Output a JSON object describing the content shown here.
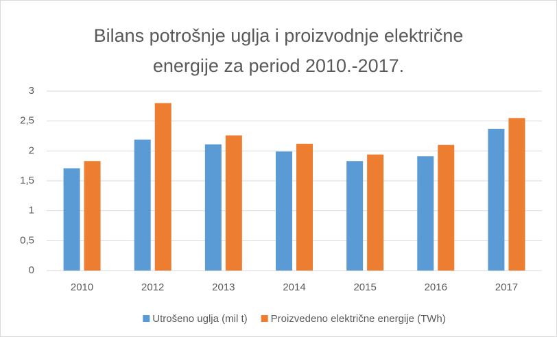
{
  "chart_data": {
    "type": "bar",
    "title": "Bilans potrošnje uglja i proizvodnje električne energije za period 2010.-2017.",
    "categories": [
      "2010",
      "2012",
      "2013",
      "2014",
      "2015",
      "2016",
      "2017"
    ],
    "series": [
      {
        "name": "Utrošeno uglja (mil t)",
        "color": "#5b9bd5",
        "values": [
          1.71,
          2.19,
          2.11,
          1.99,
          1.83,
          1.91,
          2.37
        ]
      },
      {
        "name": "Proizvedeno električne energije (TWh)",
        "color": "#ed7d31",
        "values": [
          1.83,
          2.8,
          2.26,
          2.12,
          1.94,
          2.1,
          2.55
        ]
      }
    ],
    "ylim": [
      0,
      3
    ],
    "yticks": [
      0,
      {
        "value": 0.5,
        "label": "0,5"
      },
      1,
      {
        "value": 1.5,
        "label": "1,5"
      },
      2,
      {
        "value": 2.5,
        "label": "2,5"
      },
      3
    ],
    "grid": true,
    "legend": "bottom"
  }
}
